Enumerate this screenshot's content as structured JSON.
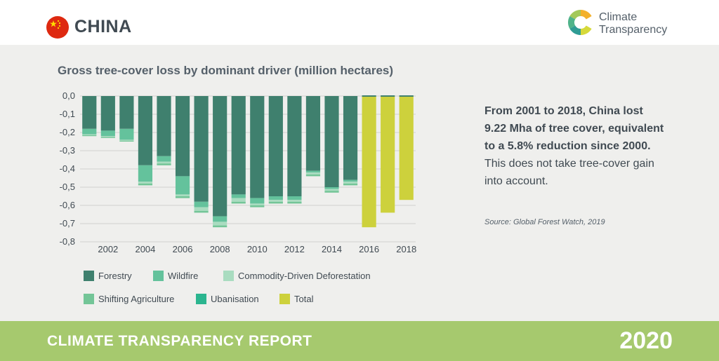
{
  "header": {
    "country": "CHINA",
    "brand_line1": "Climate",
    "brand_line2": "Transparency",
    "flag_icon": "china-flag-icon",
    "logo_icon": "climate-transparency-logo-icon"
  },
  "chart_title": "Gross tree-cover loss by dominant driver (million hectares)",
  "chart_data": {
    "type": "bar",
    "stacked": true,
    "title": "Gross tree-cover loss by dominant driver (million hectares)",
    "xlabel": "",
    "ylabel": "",
    "x": [
      2001,
      2002,
      2003,
      2004,
      2005,
      2006,
      2007,
      2008,
      2009,
      2010,
      2011,
      2012,
      2013,
      2014,
      2015,
      2016,
      2017,
      2018
    ],
    "x_tick_labels": [
      "2002",
      "2004",
      "2006",
      "2008",
      "2010",
      "2012",
      "2014",
      "2016",
      "2018"
    ],
    "y_tick_labels": [
      "0,0",
      "-0,1",
      "-0,2",
      "-0,3",
      "-0,4",
      "-0,5",
      "-0,6",
      "-0,7",
      "-0,8"
    ],
    "ylim": [
      -0.8,
      0
    ],
    "grid": "horizontal",
    "legend_position": "bottom",
    "series": [
      {
        "name": "Forestry",
        "color": "#3f806e",
        "values": [
          -0.18,
          -0.19,
          -0.18,
          -0.38,
          -0.33,
          -0.44,
          -0.58,
          -0.66,
          -0.54,
          -0.56,
          -0.55,
          -0.55,
          -0.41,
          -0.5,
          -0.46,
          null,
          null,
          null
        ]
      },
      {
        "name": "Wildfire",
        "color": "#64c29c",
        "values": [
          -0.03,
          -0.03,
          -0.06,
          -0.09,
          -0.03,
          -0.1,
          -0.03,
          -0.03,
          -0.02,
          -0.03,
          -0.02,
          -0.02,
          -0.01,
          -0.01,
          -0.01,
          null,
          null,
          null
        ]
      },
      {
        "name": "Commodity-Driven Deforestation",
        "color": "#a9dcc0",
        "values": [
          -0.005,
          -0.005,
          -0.005,
          -0.01,
          -0.01,
          -0.01,
          -0.02,
          -0.02,
          -0.02,
          -0.01,
          -0.01,
          -0.01,
          -0.01,
          -0.01,
          -0.01,
          null,
          null,
          null
        ]
      },
      {
        "name": "Shifting Agriculture",
        "color": "#73c597",
        "values": [
          -0.005,
          -0.005,
          -0.005,
          -0.01,
          -0.01,
          -0.01,
          -0.01,
          -0.01,
          -0.01,
          -0.01,
          -0.01,
          -0.01,
          -0.01,
          -0.01,
          -0.01,
          null,
          null,
          null
        ]
      },
      {
        "name": "Ubanisation",
        "color": "#2bb58f",
        "values": [
          0,
          0,
          0,
          0,
          0,
          0,
          0,
          0,
          0,
          0,
          0,
          0,
          0,
          0,
          0,
          null,
          null,
          null
        ]
      },
      {
        "name": "Total",
        "color": "#cdd13c",
        "values": [
          null,
          null,
          null,
          null,
          null,
          null,
          null,
          null,
          null,
          null,
          null,
          null,
          null,
          null,
          null,
          -0.72,
          -0.64,
          -0.57
        ]
      }
    ]
  },
  "summary": {
    "bold": "From 2001 to 2018, China lost 9.22 Mha of tree cover, equivalent to a 5.8% reduction since 2000.",
    "rest": " This does not take tree-cover gain into account."
  },
  "source": "Source: Global Forest Watch, 2019",
  "footer": {
    "title": "CLIMATE TRANSPARENCY REPORT",
    "year": "2020"
  }
}
